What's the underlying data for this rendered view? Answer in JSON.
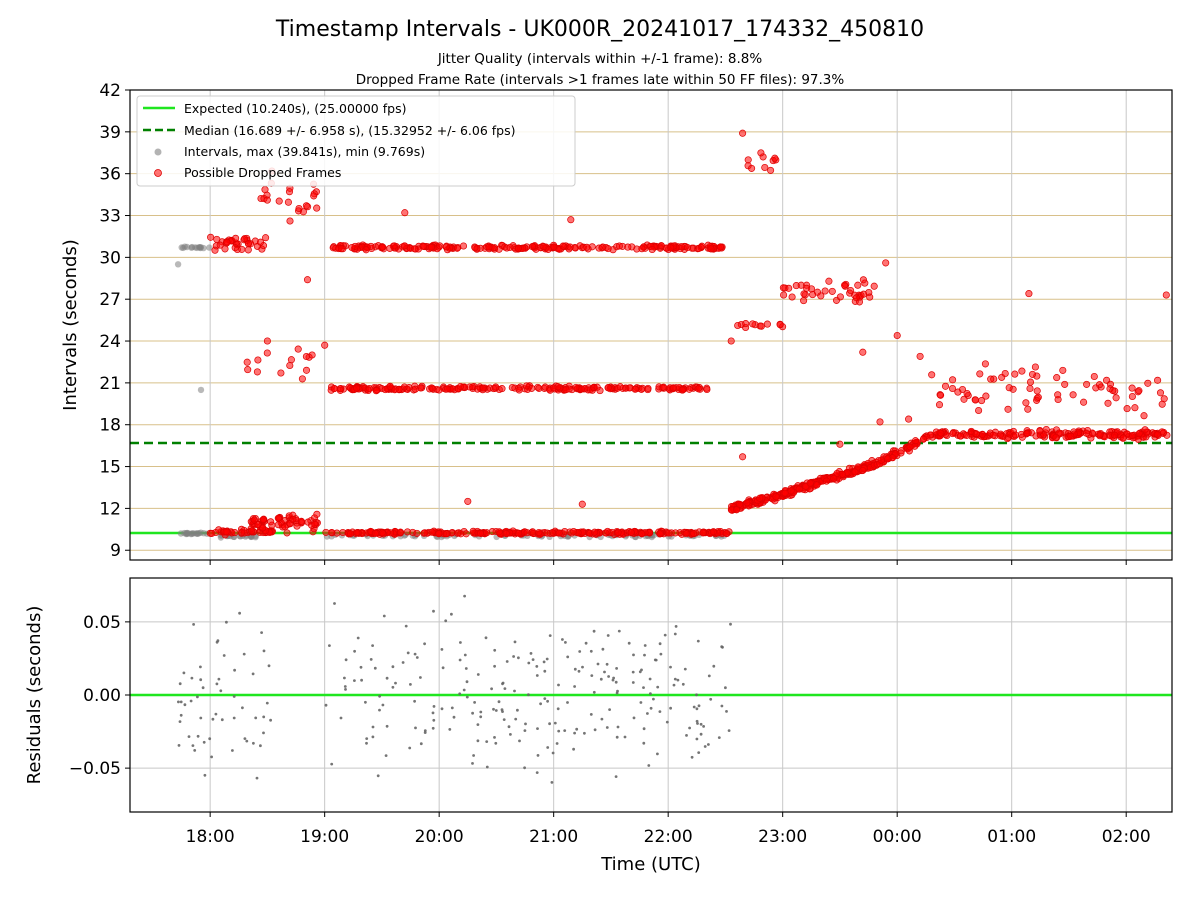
{
  "chart_data": [
    {
      "type": "scatter",
      "title": "Timestamp Intervals - UK000R_20241017_174332_450810",
      "subtitles": [
        "Jitter Quality (intervals within +/-1 frame): 8.8%",
        "Dropped Frame Rate (intervals >1 frames late within 50 FF files): 97.3%"
      ],
      "ylabel": "Intervals (seconds)",
      "xlabel": "",
      "xlim": [
        17.3,
        26.4
      ],
      "ylim": [
        8.3,
        42
      ],
      "yticks": [
        "9",
        "12",
        "15",
        "18",
        "21",
        "24",
        "27",
        "30",
        "33",
        "36",
        "39",
        "42"
      ],
      "ytick_values": [
        9,
        12,
        15,
        18,
        21,
        24,
        27,
        30,
        33,
        36,
        39,
        42
      ],
      "grid": true,
      "legend_position": "top-left",
      "legend": [
        "Expected (10.240s), (25.00000 fps)",
        "Median (16.689 +/- 6.958 s), (15.32952 +/- 6.06 fps)",
        "Intervals, max (39.841s), min (9.769s)",
        "Possible Dropped Frames"
      ],
      "series": [
        {
          "name": "Expected (10.240s), (25.00000 fps)",
          "kind": "hline",
          "y": 10.24,
          "color": "#1fe61f"
        },
        {
          "name": "Median (16.689 +/- 6.958 s), (15.32952 +/- 6.06 fps)",
          "kind": "hline",
          "y": 16.689,
          "color": "#008000",
          "dash": true
        },
        {
          "name": "Intervals, max (39.841s), min (9.769s)",
          "kind": "scatter",
          "color": "#808080",
          "groups": [
            {
              "x": [
                17.72,
                18.0
              ],
              "y": 30.7,
              "n": 14,
              "spread": 0.1
            },
            {
              "x": [
                17.72,
                18.0
              ],
              "y": 10.2,
              "n": 18,
              "spread": 0.08
            },
            {
              "x": [
                18.05,
                18.5
              ],
              "y": 10.0,
              "n": 20,
              "spread": 0.12
            },
            {
              "x": [
                19.0,
                22.55
              ],
              "y": 10.05,
              "n": 90,
              "spread": 0.15
            }
          ],
          "points": [
            [
              17.72,
              29.5
            ],
            [
              17.92,
              20.5
            ]
          ]
        },
        {
          "name": "Possible Dropped Frames",
          "kind": "scatter",
          "color": "#ff0000",
          "groups": [
            {
              "x": [
                18.0,
                18.55
              ],
              "y": 10.3,
              "n": 40,
              "spread": 0.25
            },
            {
              "x": [
                18.35,
                18.95
              ],
              "y": 11.0,
              "n": 60,
              "spread": 0.9
            },
            {
              "x": [
                18.0,
                18.5
              ],
              "y": 31.0,
              "n": 35,
              "spread": 0.8
            },
            {
              "x": [
                18.4,
                18.95
              ],
              "y": 34.5,
              "n": 22,
              "spread": 2.2
            },
            {
              "x": [
                18.3,
                18.95
              ],
              "y": 22.5,
              "n": 14,
              "spread": 1.5
            },
            {
              "x": [
                19.0,
                22.55
              ],
              "y": 10.25,
              "n": 260,
              "spread": 0.15
            },
            {
              "x": [
                19.05,
                22.55
              ],
              "y": 30.7,
              "n": 230,
              "spread": 0.25
            },
            {
              "x": [
                19.05,
                22.35
              ],
              "y": 20.6,
              "n": 210,
              "spread": 0.22
            },
            {
              "x": [
                23.0,
                23.8
              ],
              "y": 27.6,
              "n": 40,
              "spread": 1.3
            },
            {
              "x": [
                22.55,
                22.95
              ],
              "y": 37.0,
              "n": 10,
              "spread": 1.2
            },
            {
              "x": [
                22.6,
                23.0
              ],
              "y": 25.2,
              "n": 12,
              "spread": 0.5
            },
            {
              "x": [
                24.3,
                26.4
              ],
              "y": 20.5,
              "n": 70,
              "spread": 2.6
            },
            {
              "x": [
                24.3,
                26.4
              ],
              "y": 17.3,
              "n": 180,
              "spread": 0.45
            }
          ],
          "trends": [
            {
              "x0": 22.55,
              "x1": 23.0,
              "y0": 12.0,
              "y1": 13.0,
              "n": 90,
              "spread": 0.35
            },
            {
              "x0": 23.0,
              "x1": 23.8,
              "y0": 13.0,
              "y1": 15.2,
              "n": 180,
              "spread": 0.35
            },
            {
              "x0": 23.8,
              "x1": 24.3,
              "y0": 15.2,
              "y1": 17.2,
              "n": 60,
              "spread": 0.35
            }
          ],
          "points": [
            [
              18.5,
              24.0
            ],
            [
              18.85,
              28.4
            ],
            [
              19.0,
              23.7
            ],
            [
              19.7,
              33.2
            ],
            [
              20.25,
              12.5
            ],
            [
              21.15,
              32.7
            ],
            [
              21.25,
              12.3
            ],
            [
              22.55,
              24.0
            ],
            [
              22.65,
              15.7
            ],
            [
              22.65,
              38.9
            ],
            [
              23.5,
              16.6
            ],
            [
              23.7,
              23.2
            ],
            [
              23.9,
              29.6
            ],
            [
              23.85,
              18.2
            ],
            [
              24.0,
              24.4
            ],
            [
              24.1,
              18.4
            ],
            [
              24.2,
              22.9
            ],
            [
              25.15,
              27.4
            ],
            [
              26.35,
              27.3
            ]
          ]
        }
      ]
    },
    {
      "type": "scatter",
      "ylabel": "Residuals (seconds)",
      "xlabel": "Time (UTC)",
      "xlim": [
        17.3,
        26.4
      ],
      "ylim": [
        -0.08,
        0.08
      ],
      "yticks": [
        "0.05",
        "0.00",
        "−0.05"
      ],
      "ytick_values": [
        0.05,
        0.0,
        -0.05
      ],
      "xticks": [
        "18:00",
        "19:00",
        "20:00",
        "21:00",
        "22:00",
        "23:00",
        "00:00",
        "01:00",
        "02:00"
      ],
      "xtick_values": [
        18,
        19,
        20,
        21,
        22,
        23,
        24,
        25,
        26
      ],
      "grid": true,
      "series": [
        {
          "name": "",
          "kind": "hline",
          "y": 0.0,
          "color": "#1fe61f"
        },
        {
          "name": "",
          "kind": "scatter",
          "color": "#808080",
          "groups": [
            {
              "x": [
                17.72,
                18.55
              ],
              "y": 0.0,
              "n": 55,
              "spread": 0.078
            },
            {
              "x": [
                19.0,
                22.55
              ],
              "y": 0.0,
              "n": 240,
              "spread": 0.078
            }
          ]
        }
      ]
    }
  ]
}
